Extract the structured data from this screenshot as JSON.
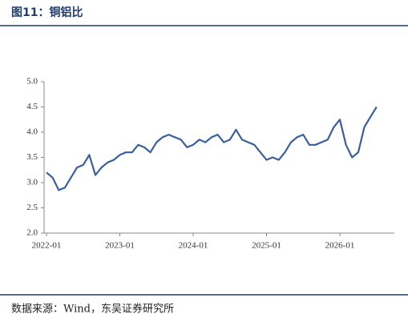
{
  "title": "图11：铜铝比",
  "source": "数据来源：Wind，东吴证券研究所",
  "chart_data": {
    "type": "line",
    "x": [
      "2022-01",
      "2022-02",
      "2022-03",
      "2022-04",
      "2022-05",
      "2022-06",
      "2022-07",
      "2022-08",
      "2022-09",
      "2022-10",
      "2022-11",
      "2022-12",
      "2023-01",
      "2023-02",
      "2023-03",
      "2023-04",
      "2023-05",
      "2023-06",
      "2023-07",
      "2023-08",
      "2023-09",
      "2023-10",
      "2023-11",
      "2023-12",
      "2024-01",
      "2024-02",
      "2024-03",
      "2024-04",
      "2024-05",
      "2024-06",
      "2024-07",
      "2024-08",
      "2024-09",
      "2024-10",
      "2024-11",
      "2024-12",
      "2025-01",
      "2025-02",
      "2025-03",
      "2025-04",
      "2025-05",
      "2025-06",
      "2025-07",
      "2025-08",
      "2025-09",
      "2025-10",
      "2025-11",
      "2025-12",
      "2026-01",
      "2026-02",
      "2026-03",
      "2026-04",
      "2026-05",
      "2026-06",
      "2026-07"
    ],
    "values": [
      3.2,
      3.1,
      2.85,
      2.9,
      3.1,
      3.3,
      3.35,
      3.55,
      3.15,
      3.3,
      3.4,
      3.45,
      3.55,
      3.6,
      3.6,
      3.75,
      3.7,
      3.6,
      3.8,
      3.9,
      3.95,
      3.9,
      3.85,
      3.7,
      3.75,
      3.85,
      3.8,
      3.9,
      3.95,
      3.8,
      3.85,
      4.05,
      3.85,
      3.8,
      3.75,
      3.6,
      3.45,
      3.5,
      3.45,
      3.6,
      3.8,
      3.9,
      3.95,
      3.75,
      3.75,
      3.8,
      3.85,
      4.1,
      4.25,
      3.75,
      3.5,
      3.6,
      4.1,
      4.3,
      4.5
    ],
    "color": "#3a5f9a",
    "xticks": [
      "2022-01",
      "2023-01",
      "2024-01",
      "2025-01",
      "2026-01"
    ],
    "ylim": [
      2.0,
      5.0
    ],
    "yticks": [
      {
        "value": 2.0,
        "label": "2.0"
      },
      {
        "value": 2.5,
        "label": "2.5"
      },
      {
        "value": 3.0,
        "label": "3.0"
      },
      {
        "value": 3.5,
        "label": "3.5"
      },
      {
        "value": 4.0,
        "label": "4.0"
      },
      {
        "value": 4.5,
        "label": "4.5"
      },
      {
        "value": 5.0,
        "label": "5.0"
      }
    ],
    "grid": false
  }
}
